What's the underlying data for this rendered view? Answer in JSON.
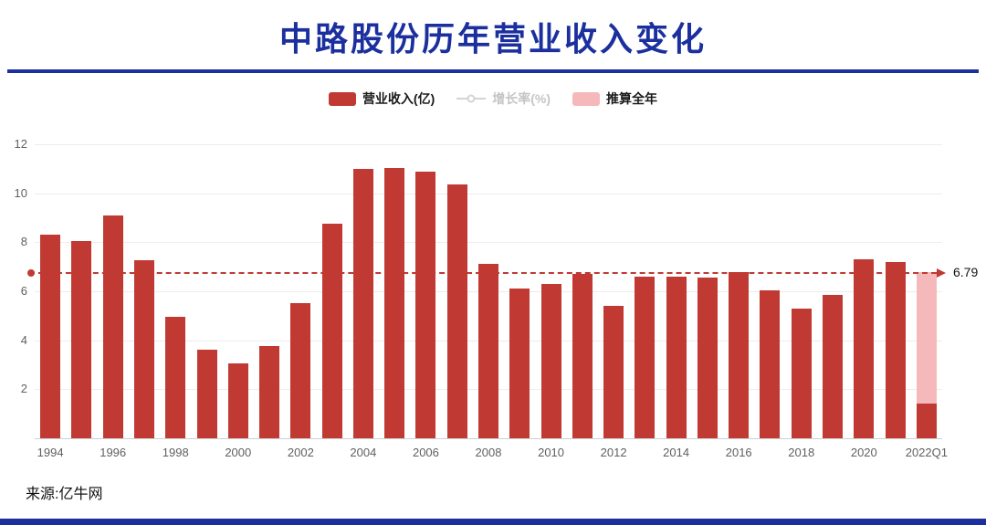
{
  "title": "中路股份历年营业收入变化",
  "legend": [
    {
      "label": "营业收入(亿)",
      "type": "bar",
      "color": "#c03a33",
      "enabled": true
    },
    {
      "label": "增长率(%)",
      "type": "line",
      "color": "#d4d4d4",
      "enabled": false
    },
    {
      "label": "推算全年",
      "type": "bar",
      "color": "#f5b9bb",
      "enabled": true
    }
  ],
  "source": "来源:亿牛网",
  "colors": {
    "title_blue": "#1b2f9e",
    "bar_red": "#c03a33",
    "estimate_pink": "#f5b9bb",
    "reference_red": "#c03a33",
    "grid": "#ededed",
    "axis_text": "#606060"
  },
  "chart_data": {
    "type": "bar",
    "title": "中路股份历年营业收入变化",
    "categories": [
      "1994",
      "1995",
      "1996",
      "1997",
      "1998",
      "1999",
      "2000",
      "2001",
      "2002",
      "2003",
      "2004",
      "2005",
      "2006",
      "2007",
      "2008",
      "2009",
      "2010",
      "2011",
      "2012",
      "2013",
      "2014",
      "2015",
      "2016",
      "2017",
      "2018",
      "2019",
      "2020",
      "2021",
      "2022Q1"
    ],
    "series": [
      {
        "name": "营业收入(亿)",
        "values": [
          8.3,
          8.05,
          9.1,
          7.25,
          4.95,
          3.6,
          3.05,
          3.75,
          5.5,
          8.75,
          11.0,
          11.05,
          10.9,
          10.35,
          7.1,
          6.1,
          6.3,
          6.7,
          5.4,
          6.6,
          6.6,
          6.55,
          6.8,
          6.05,
          5.3,
          5.85,
          7.3,
          7.2,
          1.4
        ]
      }
    ],
    "estimate": {
      "name": "推算全年",
      "category": "2022Q1",
      "value": 6.79
    },
    "reference_line": {
      "value": 6.79,
      "label": "6.79"
    },
    "ylim": [
      0,
      12
    ],
    "yticks": [
      2,
      4,
      6,
      8,
      10,
      12
    ],
    "x_tick_every": 2,
    "grid": true,
    "legend_position": "top"
  }
}
